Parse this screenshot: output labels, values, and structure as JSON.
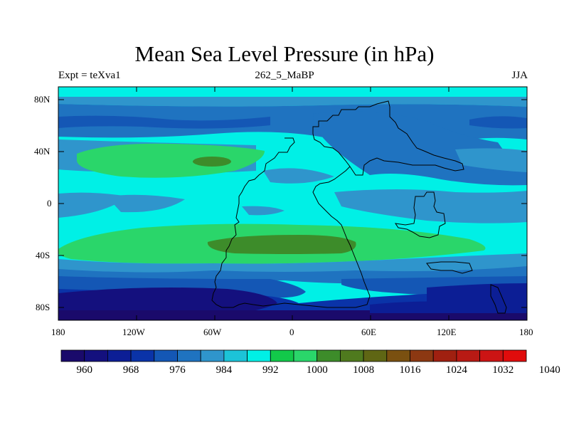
{
  "chart_data": {
    "type": "heatmap",
    "title": "Mean Sea Level Pressure (in hPa)",
    "left_label": "Expt = teXva1",
    "center_label": "262_5_MaBP",
    "right_label": "JJA",
    "x_ticks": [
      "180",
      "120W",
      "60W",
      "0",
      "60E",
      "120E",
      "180"
    ],
    "y_ticks": [
      "80N",
      "40N",
      "0",
      "40S",
      "80S"
    ],
    "xlim": [
      -180,
      180
    ],
    "ylim": [
      -90,
      90
    ],
    "colorbar": {
      "labels": [
        "960",
        "968",
        "976",
        "984",
        "992",
        "1000",
        "1008",
        "1016",
        "1024",
        "1032",
        "1040"
      ],
      "colors": [
        "#1a0a6b",
        "#14107e",
        "#0c1e95",
        "#0a33a8",
        "#1457b5",
        "#1f73c0",
        "#2f95cc",
        "#1cc3d8",
        "#00f0e6",
        "#12c94a",
        "#2ad66a",
        "#3d8c2a",
        "#4f7a1e",
        "#5f6614",
        "#7a5010",
        "#8c3812",
        "#a02010",
        "#b81a14",
        "#cc1414",
        "#e00c0c"
      ]
    },
    "levels_hPa": {
      "band_a": 1004,
      "band_b": 1012,
      "band_c": 996,
      "band_d": 988,
      "band_e": 980,
      "band_f": 972,
      "band_g": 964
    }
  }
}
